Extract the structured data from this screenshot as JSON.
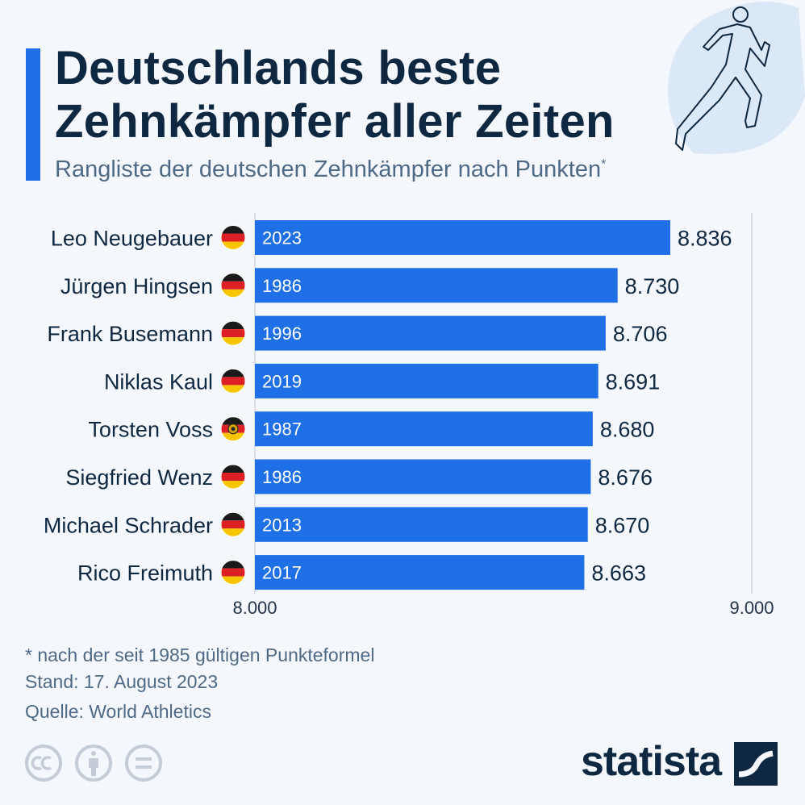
{
  "header": {
    "title": "Deutschlands beste Zehnkämpfer aller Zeiten",
    "subtitle": "Rangliste der deutschen Zehnkämpfer nach Punkten",
    "subtitle_mark": "*"
  },
  "colors": {
    "bar": "#1f6fe6",
    "title": "#0f2842",
    "text": "#4f6a86",
    "background": "#f4f7fb"
  },
  "chart_data": {
    "type": "bar",
    "orientation": "horizontal",
    "title": "Deutschlands beste Zehnkämpfer aller Zeiten",
    "categories": [
      "Leo Neugebauer",
      "Jürgen Hingsen",
      "Frank Busemann",
      "Niklas Kaul",
      "Torsten Voss",
      "Siegfried Wenz",
      "Michael Schrader",
      "Rico Freimuth"
    ],
    "values": [
      8836,
      8730,
      8706,
      8691,
      8680,
      8676,
      8670,
      8663
    ],
    "value_labels": [
      "8.836",
      "8.730",
      "8.706",
      "8.691",
      "8.680",
      "8.676",
      "8.670",
      "8.663"
    ],
    "years": [
      "2023",
      "1986",
      "1996",
      "2019",
      "1987",
      "1986",
      "2013",
      "2017"
    ],
    "flags": [
      "flag-germany",
      "flag-germany",
      "flag-germany",
      "flag-germany",
      "flag-gdr",
      "flag-germany",
      "flag-germany",
      "flag-germany"
    ],
    "xlim": [
      8000,
      9000
    ],
    "ticks": [
      8000,
      9000
    ],
    "tick_labels": [
      "8.000",
      "9.000"
    ],
    "xlabel": "",
    "ylabel": ""
  },
  "notes": {
    "footnote": "* nach der seit 1985 gültigen Punkteformel",
    "date": "Stand: 17. August 2023",
    "source": "Quelle: World Athletics"
  },
  "branding": {
    "logo": "statista",
    "license_icons": [
      "cc-icon",
      "attribution-icon",
      "no-derivatives-icon"
    ]
  }
}
